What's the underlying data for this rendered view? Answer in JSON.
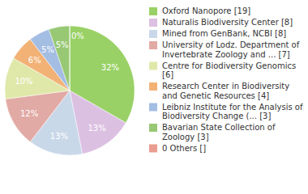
{
  "chart_data": {
    "type": "pie",
    "categories": [
      "Oxford Nanopore [19]",
      "Naturalis Biodiversity Center [8]",
      "Mined from GenBank, NCBI [8]",
      "University of Lodz. Department of Invertebrate Zoology and ... [7]",
      "Centre for Biodiversity Genomics [6]",
      "Research Center in Biodiversity and Genetic Resources [4]",
      "Leibniz Institute for the Analysis of Biodiversity Change (... [3]",
      "Bavarian State Collection of Zoology [3]",
      "0 Others []"
    ],
    "values": [
      32,
      13,
      13,
      12,
      10,
      6,
      5,
      5,
      0
    ],
    "value_labels": [
      "32%",
      "13%",
      "13%",
      "12%",
      "10%",
      "6%",
      "5%",
      "5%",
      "0%"
    ],
    "colors": [
      "#99d166",
      "#dcc0e2",
      "#c9d8e9",
      "#e2aaa5",
      "#dfe8a9",
      "#f2b276",
      "#a4bde3",
      "#98c873",
      "#e99d90"
    ],
    "data_labels": true
  }
}
